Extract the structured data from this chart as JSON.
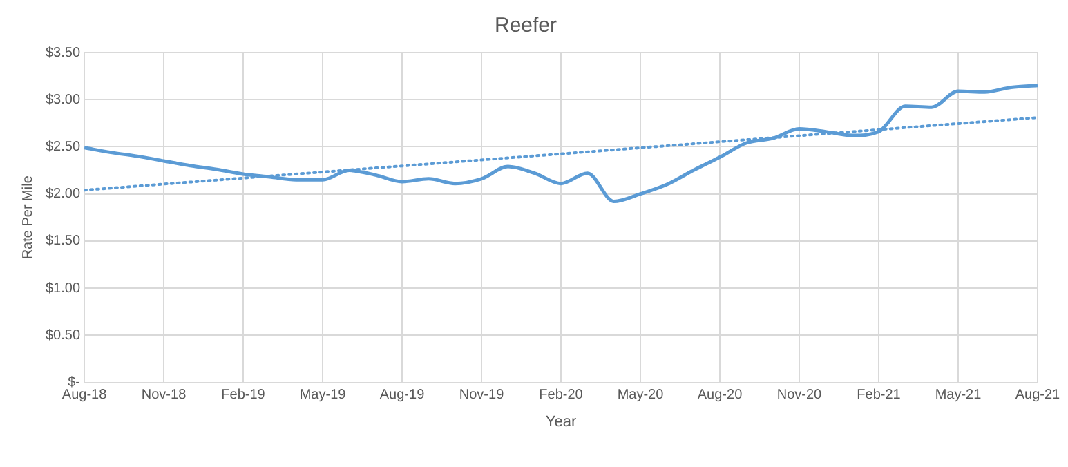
{
  "chart_data": {
    "type": "line",
    "title": "Reefer",
    "xlabel": "Year",
    "ylabel": "Rate Per Mile",
    "series": [
      {
        "color": "#5b9bd5",
        "x": [
          "2018-08",
          "2018-09",
          "2018-10",
          "2018-11",
          "2018-12",
          "2019-01",
          "2019-02",
          "2019-03",
          "2019-04",
          "2019-05",
          "2019-06",
          "2019-07",
          "2019-08",
          "2019-09",
          "2019-10",
          "2019-11",
          "2019-12",
          "2020-01",
          "2020-02",
          "2020-03",
          "2020-04",
          "2020-05",
          "2020-06",
          "2020-07",
          "2020-08",
          "2020-09",
          "2020-10",
          "2020-11",
          "2020-12",
          "2021-01",
          "2021-02",
          "2021-03",
          "2021-04",
          "2021-05",
          "2021-06",
          "2021-07",
          "2021-08"
        ],
        "values": [
          2.49,
          2.44,
          2.4,
          2.35,
          2.3,
          2.26,
          2.21,
          2.18,
          2.15,
          2.15,
          2.25,
          2.2,
          2.13,
          2.16,
          2.11,
          2.16,
          2.29,
          2.22,
          2.11,
          2.22,
          1.92,
          2.0,
          2.1,
          2.25,
          2.39,
          2.54,
          2.59,
          2.69,
          2.66,
          2.62,
          2.66,
          2.93,
          2.92,
          3.09,
          3.08,
          3.13,
          3.15
        ]
      },
      {
        "type": "line",
        "color": "#5b9bd5",
        "line_style": "dotted",
        "x": [
          "2018-08",
          "2021-08"
        ],
        "values": [
          2.04,
          2.81
        ]
      }
    ],
    "xlim": [
      "2018-08",
      "2021-08"
    ],
    "xticks": [
      {
        "value": "2018-08",
        "label": "Aug-18"
      },
      {
        "value": "2018-11",
        "label": "Nov-18"
      },
      {
        "value": "2019-02",
        "label": "Feb-19"
      },
      {
        "value": "2019-05",
        "label": "May-19"
      },
      {
        "value": "2019-08",
        "label": "Aug-19"
      },
      {
        "value": "2019-11",
        "label": "Nov-19"
      },
      {
        "value": "2020-02",
        "label": "Feb-20"
      },
      {
        "value": "2020-05",
        "label": "May-20"
      },
      {
        "value": "2020-08",
        "label": "Aug-20"
      },
      {
        "value": "2020-11",
        "label": "Nov-20"
      },
      {
        "value": "2021-02",
        "label": "Feb-21"
      },
      {
        "value": "2021-05",
        "label": "May-21"
      },
      {
        "value": "2021-08",
        "label": "Aug-21"
      }
    ],
    "ylim": [
      0,
      3.5
    ],
    "yticks": [
      {
        "value": 0,
        "label": "$-"
      },
      {
        "value": 0.5,
        "label": "$0.50"
      },
      {
        "value": 1,
        "label": "$1.00"
      },
      {
        "value": 1.5,
        "label": "$1.50"
      },
      {
        "value": 2,
        "label": "$2.00"
      },
      {
        "value": 2.5,
        "label": "$2.50"
      },
      {
        "value": 3,
        "label": "$3.00"
      },
      {
        "value": 3.5,
        "label": "$3.50"
      }
    ],
    "grid": true,
    "legend": false,
    "marker": "none"
  }
}
